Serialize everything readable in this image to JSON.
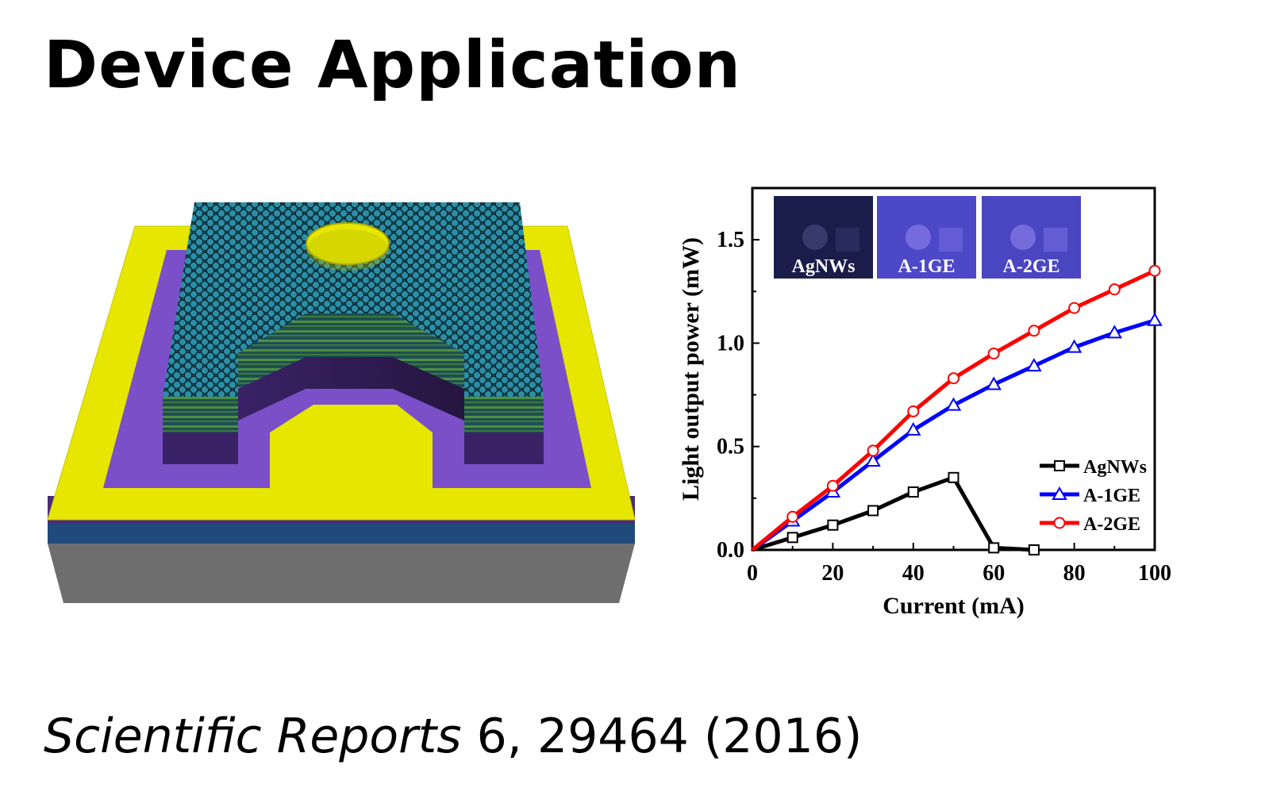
{
  "slide": {
    "title": "Device Application",
    "citation": {
      "journal": "Scientific Reports",
      "details": " 6, 29464 (2016)"
    }
  },
  "illustration": {
    "colors": {
      "electrode": "#e8e800",
      "mesa_purple": "#7a4fc8",
      "dark_layer": "#4a2c7a",
      "blue_layer": "#1f4a7a",
      "substrate": "#707070",
      "graphene": "#1d5f73",
      "green_stripes": "#3c7a3c"
    }
  },
  "chart_data": {
    "type": "line",
    "xlabel": "Current (mA)",
    "ylabel": "Light output power (mW)",
    "xlim": [
      0,
      100
    ],
    "ylim": [
      0,
      1.75
    ],
    "xticks": [
      "0",
      "20",
      "40",
      "60",
      "80",
      "100"
    ],
    "yticks": [
      "0.0",
      "0.5",
      "1.0",
      "1.5"
    ],
    "ytick_values": [
      0,
      0.5,
      1.0,
      1.5
    ],
    "xtick_values": [
      0,
      20,
      40,
      60,
      80,
      100
    ],
    "legend_position": "bottom-right",
    "inset_labels": [
      "AgNWs",
      "A-1GE",
      "A-2GE"
    ],
    "series": [
      {
        "name": "AgNWs",
        "color": "#000000",
        "marker": "square",
        "x": [
          0,
          10,
          20,
          30,
          40,
          50,
          60,
          70
        ],
        "y": [
          0.0,
          0.06,
          0.12,
          0.19,
          0.28,
          0.35,
          0.01,
          0.0
        ]
      },
      {
        "name": "A-1GE",
        "color": "#0000ff",
        "marker": "triangle",
        "x": [
          0,
          10,
          20,
          30,
          40,
          50,
          60,
          70,
          80,
          90,
          100
        ],
        "y": [
          0.0,
          0.14,
          0.28,
          0.43,
          0.58,
          0.7,
          0.8,
          0.89,
          0.98,
          1.05,
          1.11
        ]
      },
      {
        "name": "A-2GE",
        "color": "#ff0000",
        "marker": "circle",
        "x": [
          0,
          10,
          20,
          30,
          40,
          50,
          60,
          70,
          80,
          90,
          100
        ],
        "y": [
          0.0,
          0.16,
          0.31,
          0.48,
          0.67,
          0.83,
          0.95,
          1.06,
          1.17,
          1.26,
          1.35
        ]
      }
    ]
  }
}
